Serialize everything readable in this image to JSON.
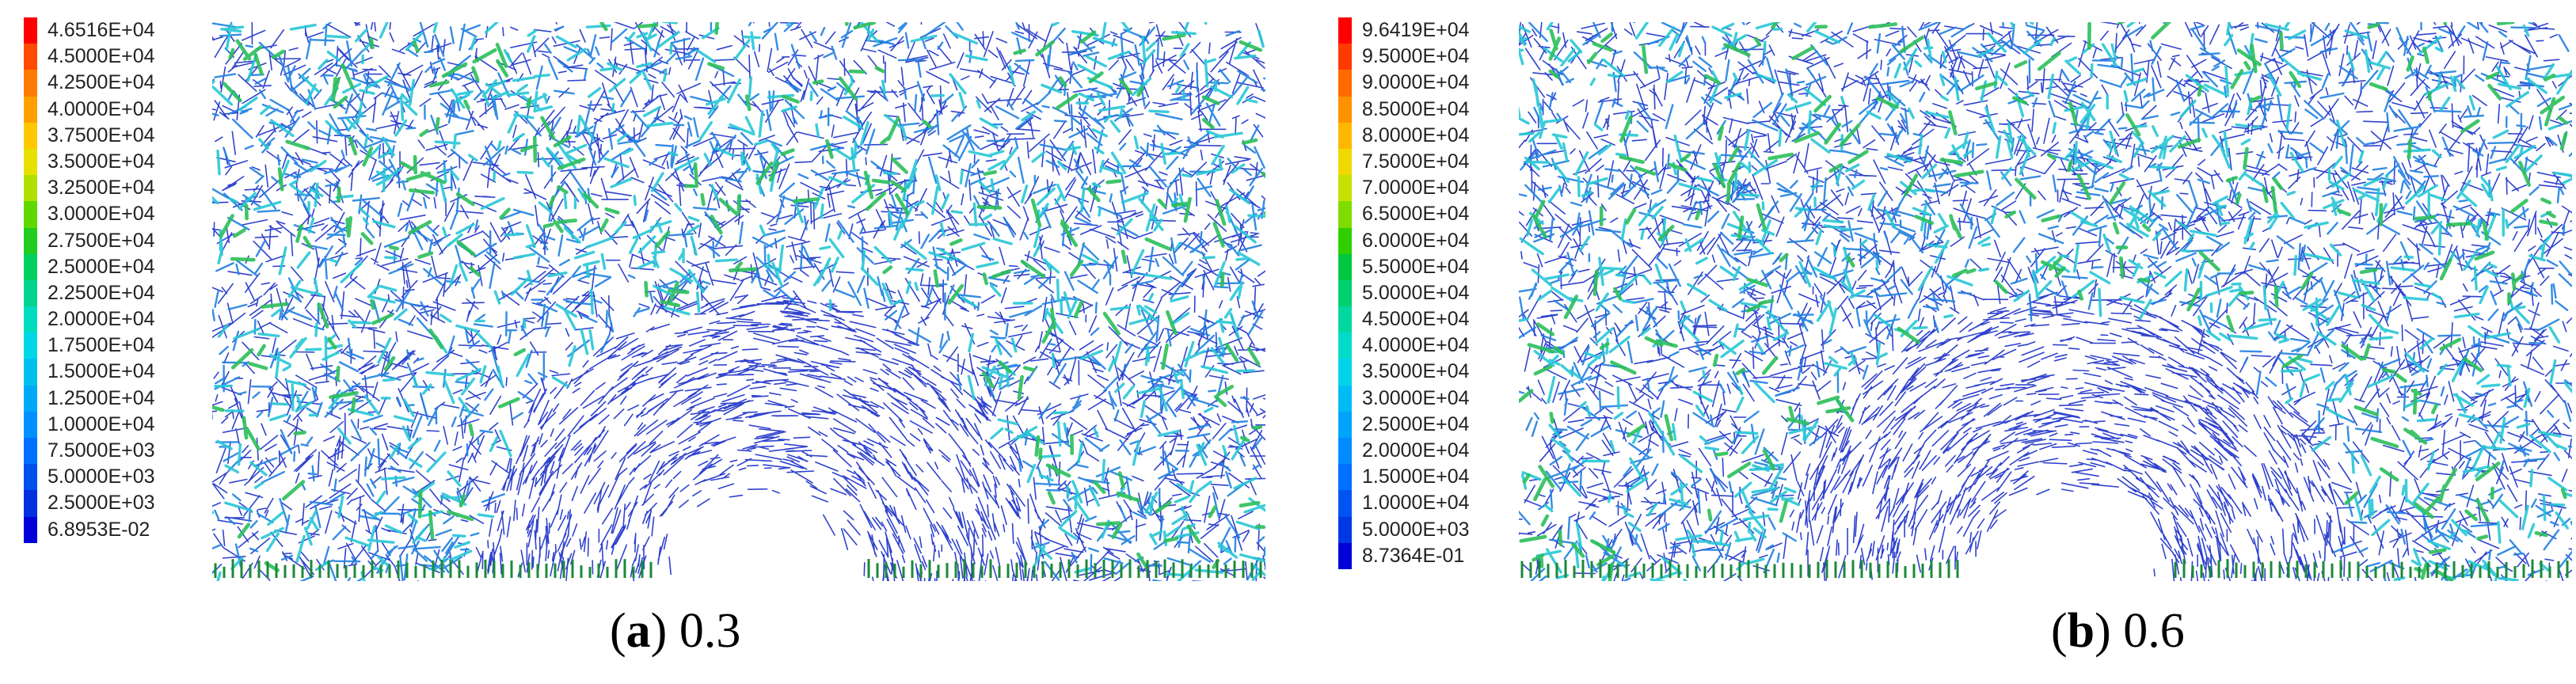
{
  "panels": [
    {
      "id": "a",
      "caption_letter": "a",
      "caption_value": "0.3",
      "legend": [
        "4.6516E+04",
        "4.5000E+04",
        "4.2500E+04",
        "4.0000E+04",
        "3.7500E+04",
        "3.5000E+04",
        "3.2500E+04",
        "3.0000E+04",
        "2.7500E+04",
        "2.5000E+04",
        "2.2500E+04",
        "2.0000E+04",
        "1.7500E+04",
        "1.5000E+04",
        "1.2500E+04",
        "1.0000E+04",
        "7.5000E+03",
        "5.0000E+03",
        "2.5000E+03",
        "6.8953E-02"
      ],
      "legend_colors": [
        "#ff0000",
        "#ff4a00",
        "#ff7a00",
        "#ffa000",
        "#ffc800",
        "#e8e000",
        "#b0e000",
        "#60d800",
        "#20cc20",
        "#00d060",
        "#00d490",
        "#00dcc0",
        "#00d8e8",
        "#00c0f0",
        "#00a8f8",
        "#0090ff",
        "#0070ff",
        "#0050f0",
        "#0030e0",
        "#0000d8"
      ],
      "seed": 17
    },
    {
      "id": "b",
      "caption_letter": "b",
      "caption_value": "0.6",
      "legend": [
        "9.6419E+04",
        "9.5000E+04",
        "9.0000E+04",
        "8.5000E+04",
        "8.0000E+04",
        "7.5000E+04",
        "7.0000E+04",
        "6.5000E+04",
        "6.0000E+04",
        "5.5000E+04",
        "5.0000E+04",
        "4.5000E+04",
        "4.0000E+04",
        "3.5000E+04",
        "3.0000E+04",
        "2.5000E+04",
        "2.0000E+04",
        "1.5000E+04",
        "1.0000E+04",
        "5.0000E+03",
        "8.7364E-01"
      ],
      "legend_colors": [
        "#ff0000",
        "#ff3a00",
        "#ff6a00",
        "#ff9200",
        "#ffb800",
        "#f0d800",
        "#c8e000",
        "#80dc00",
        "#30d000",
        "#00c840",
        "#00d070",
        "#00d8a0",
        "#00dcc8",
        "#00d4ec",
        "#00bcf4",
        "#00a4fc",
        "#008cff",
        "#0070ff",
        "#0054f4",
        "#0038e4",
        "#0000d8"
      ],
      "seed": 91
    }
  ],
  "caption_paren_open": "(",
  "caption_paren_close": ")"
}
